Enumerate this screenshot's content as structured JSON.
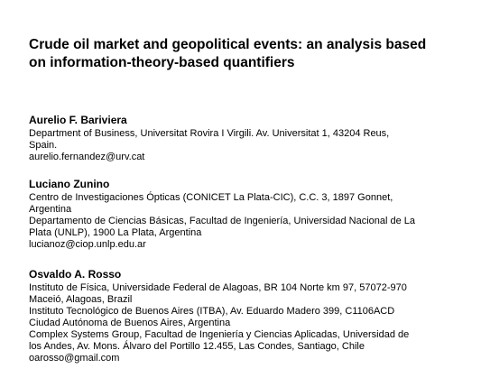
{
  "title": {
    "line1": "Crude oil market and geopolitical events: an analysis based",
    "line2": "on information-theory-based quantifiers"
  },
  "authors": [
    {
      "name": "Aurelio F. Bariviera",
      "lines": [
        "Department of Business, Universitat Rovira I Virgili. Av. Universitat 1, 43204 Reus,",
        "Spain.",
        "aurelio.fernandez@urv.cat"
      ]
    },
    {
      "name": "Luciano Zunino",
      "lines": [
        "Centro de Investigaciones Ópticas (CONICET La Plata-CIC), C.C. 3, 1897 Gonnet,",
        "Argentina",
        "Departamento de Ciencias Básicas, Facultad de Ingeniería, Universidad Nacional de La",
        "Plata (UNLP), 1900 La Plata, Argentina",
        "lucianoz@ciop.unlp.edu.ar"
      ]
    },
    {
      "name": "Osvaldo A. Rosso",
      "lines": [
        "Instituto de Física, Universidade Federal de Alagoas, BR 104 Norte km 97, 57072-970",
        "Maceió, Alagoas, Brazil",
        "Instituto Tecnológico de Buenos Aires (ITBA), Av. Eduardo Madero 399, C1106ACD",
        "Ciudad Autónoma de Buenos Aires, Argentina",
        "Complex Systems Group, Facultad de Ingeniería y Ciencias Aplicadas, Universidad de",
        "los Andes, Av. Mons. Álvaro del Portillo 12.455, Las Condes, Santiago, Chile",
        "oarosso@gmail.com"
      ]
    }
  ]
}
